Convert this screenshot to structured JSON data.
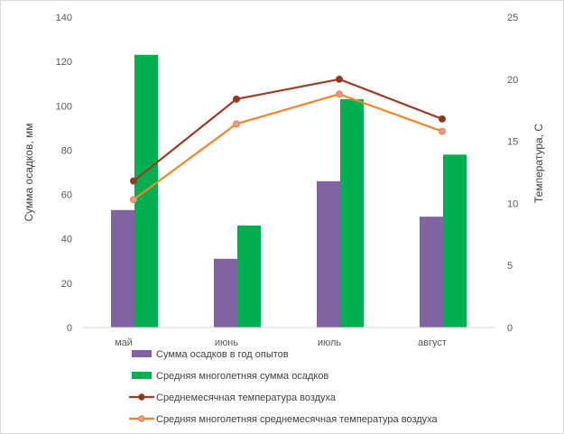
{
  "chart_data": {
    "type": "bar",
    "categories": [
      "май",
      "июнь",
      "июль",
      "август"
    ],
    "ylabel": "Сумма осадков, мм",
    "y2label": "Температура, С",
    "ylim": [
      0,
      140
    ],
    "y2lim": [
      0,
      25
    ],
    "yticks": [
      0,
      20,
      40,
      60,
      80,
      100,
      120,
      140
    ],
    "y2ticks": [
      0,
      5,
      10,
      15,
      20,
      25
    ],
    "grid": false,
    "legend_position": "bottom",
    "series": [
      {
        "name": "Сумма осадков в год опытов",
        "kind": "bar",
        "axis": "left",
        "color": "#8064a2",
        "values": [
          53,
          31,
          66,
          50
        ]
      },
      {
        "name": "Средняя многолетняя сумма осадков",
        "kind": "bar",
        "axis": "left",
        "color": "#00b050",
        "values": [
          123,
          46,
          103,
          78
        ]
      },
      {
        "name": "Среднемесячная температура воздуха",
        "kind": "line",
        "axis": "right",
        "color": "#9e3a26",
        "marker_color": "#7f3f1f",
        "values": [
          11.8,
          18.4,
          20.0,
          16.8
        ]
      },
      {
        "name": "Средняя многолетняя среднемесячная температура воздуха",
        "kind": "line",
        "axis": "right",
        "color": "#f58426",
        "marker_color": "#e19ba0",
        "values": [
          10.3,
          16.4,
          18.8,
          15.8
        ]
      }
    ]
  }
}
